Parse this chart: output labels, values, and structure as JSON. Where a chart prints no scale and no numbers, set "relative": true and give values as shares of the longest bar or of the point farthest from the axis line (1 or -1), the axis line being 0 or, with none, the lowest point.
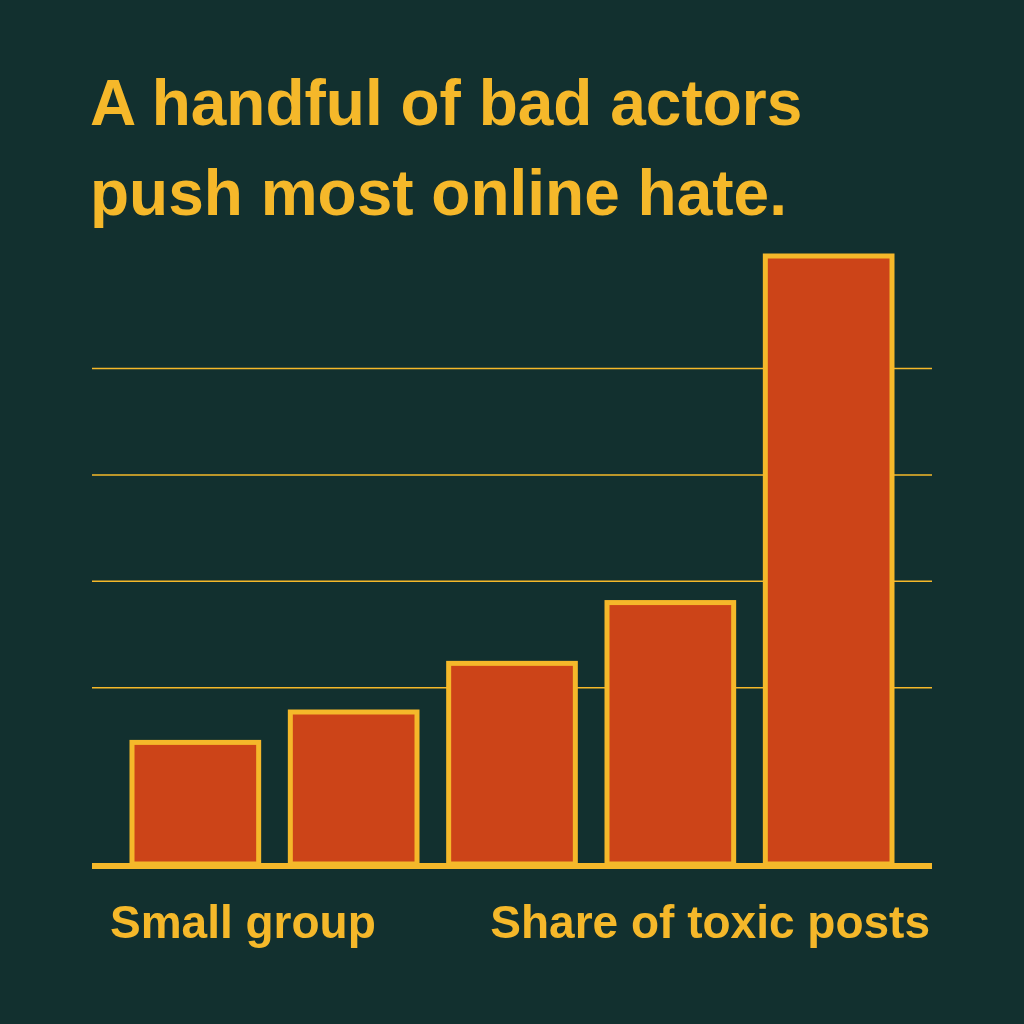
{
  "chart_data": {
    "type": "bar",
    "title": "A handful of bad actors push most online hate.",
    "categories": [
      null,
      null,
      null,
      null,
      null
    ],
    "values": [
      0.2,
      0.25,
      0.33,
      0.43,
      1
    ],
    "color": "#cc4418",
    "relative": true,
    "ref_lines": [
      {
        "axis": "y",
        "value": 0.29,
        "color": "#f5b82a"
      },
      {
        "axis": "y",
        "value": 0.465,
        "color": "#f5b82a"
      },
      {
        "axis": "y",
        "value": 0.64,
        "color": "#f5b82a"
      },
      {
        "axis": "y",
        "value": 0.815,
        "color": "#f5b82a"
      }
    ],
    "annotations": [
      "Small group",
      "Share of toxic posts"
    ]
  }
}
